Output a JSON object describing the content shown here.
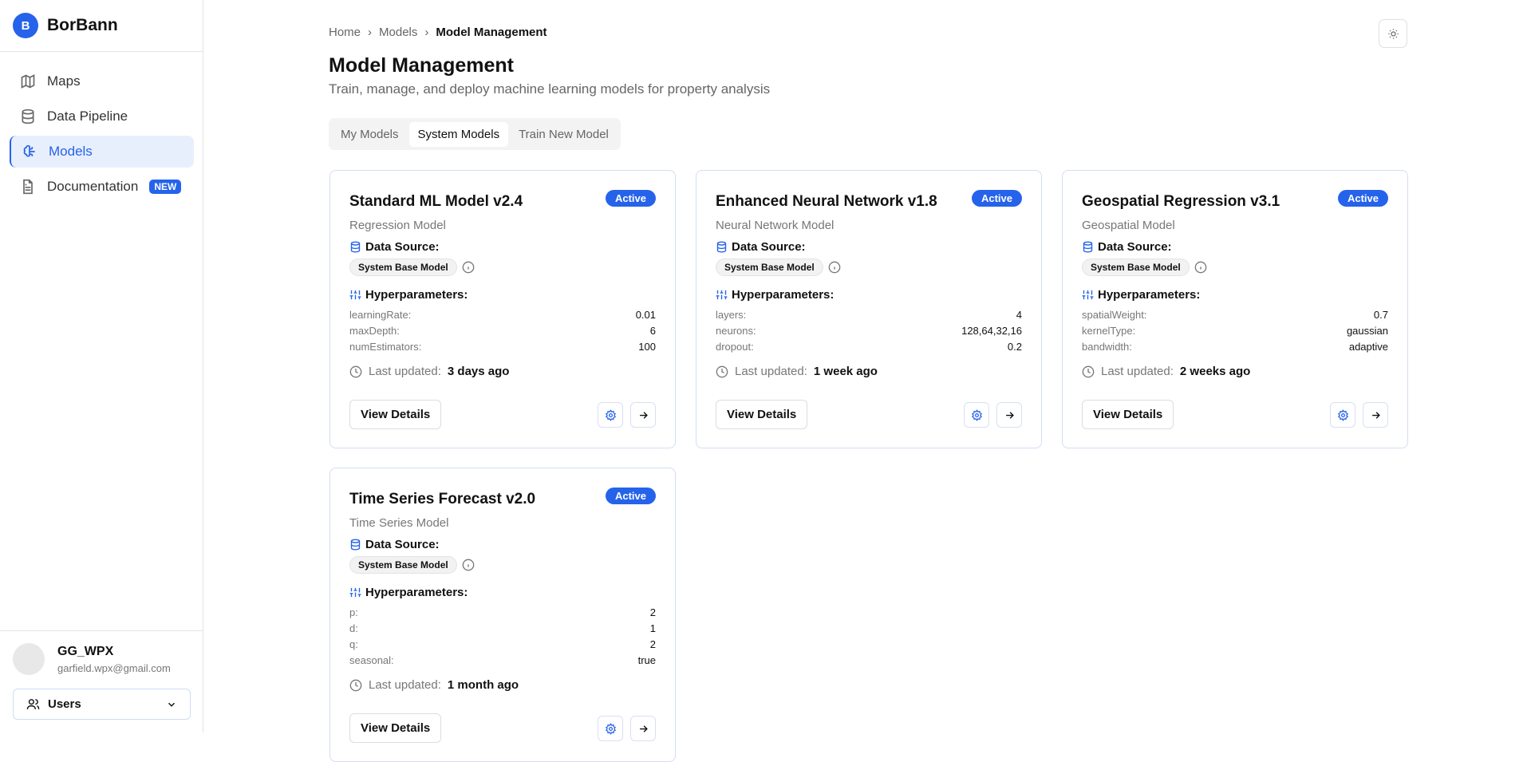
{
  "app": {
    "logo_letter": "B",
    "name": "BorBann"
  },
  "sidebar": {
    "items": [
      {
        "label": "Maps",
        "icon": "map-icon"
      },
      {
        "label": "Data Pipeline",
        "icon": "database-icon"
      },
      {
        "label": "Models",
        "icon": "brain-icon",
        "active": true
      },
      {
        "label": "Documentation",
        "icon": "file-text-icon",
        "badge": "NEW"
      }
    ],
    "user": {
      "name": "GG_WPX",
      "email": "garfield.wpx@gmail.com"
    },
    "role_select": {
      "value": "Users"
    }
  },
  "breadcrumb": [
    "Home",
    "Models",
    "Model Management"
  ],
  "header": {
    "title": "Model Management",
    "subtitle": "Train, manage, and deploy machine learning models for property analysis"
  },
  "tabs": [
    {
      "label": "My Models"
    },
    {
      "label": "System Models",
      "active": true
    },
    {
      "label": "Train New Model"
    }
  ],
  "labels": {
    "data_source": "Data Source:",
    "hyperparameters": "Hyperparameters:",
    "last_updated": "Last updated:",
    "view_details": "View Details"
  },
  "colors": {
    "accent": "#2563eb"
  },
  "models": [
    {
      "title": "Standard ML Model v2.4",
      "status": "Active",
      "type": "Regression Model",
      "source": "System Base Model",
      "params": [
        [
          "learningRate:",
          "0.01"
        ],
        [
          "maxDepth:",
          "6"
        ],
        [
          "numEstimators:",
          "100"
        ]
      ],
      "updated": "3 days ago"
    },
    {
      "title": "Enhanced Neural Network v1.8",
      "status": "Active",
      "type": "Neural Network Model",
      "source": "System Base Model",
      "params": [
        [
          "layers:",
          "4"
        ],
        [
          "neurons:",
          "128,64,32,16"
        ],
        [
          "dropout:",
          "0.2"
        ]
      ],
      "updated": "1 week ago"
    },
    {
      "title": "Geospatial Regression v3.1",
      "status": "Active",
      "type": "Geospatial Model",
      "source": "System Base Model",
      "params": [
        [
          "spatialWeight:",
          "0.7"
        ],
        [
          "kernelType:",
          "gaussian"
        ],
        [
          "bandwidth:",
          "adaptive"
        ]
      ],
      "updated": "2 weeks ago"
    },
    {
      "title": "Time Series Forecast v2.0",
      "status": "Active",
      "type": "Time Series Model",
      "source": "System Base Model",
      "params": [
        [
          "p:",
          "2"
        ],
        [
          "d:",
          "1"
        ],
        [
          "q:",
          "2"
        ],
        [
          "seasonal:",
          "true"
        ]
      ],
      "updated": "1 month ago"
    }
  ]
}
